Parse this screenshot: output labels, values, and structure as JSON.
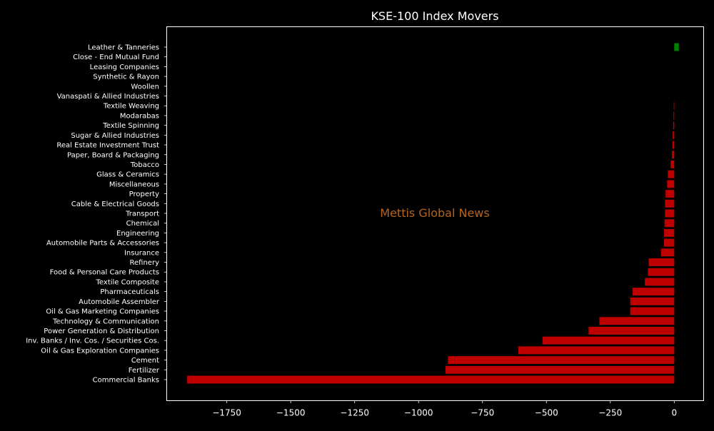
{
  "chart_data": {
    "type": "bar",
    "orientation": "horizontal",
    "title": "KSE-100 Index Movers",
    "xlabel": "",
    "ylabel": "",
    "watermark": "Mettis Global News",
    "xlim": [
      -1985,
      115
    ],
    "xticks": [
      -1750,
      -1500,
      -1250,
      -1000,
      -750,
      -500,
      -250,
      0
    ],
    "xtick_labels": [
      "−1750",
      "−1500",
      "−1250",
      "−1000",
      "−750",
      "−500",
      "−250",
      "0"
    ],
    "categories": [
      "Commercial Banks",
      "Fertilizer",
      "Cement",
      "Oil & Gas Exploration Companies",
      "Inv. Banks / Inv. Cos. / Securities Cos.",
      "Power Generation & Distribution",
      "Technology & Communication",
      "Oil & Gas Marketing Companies",
      "Automobile Assembler",
      "Pharmaceuticals",
      "Textile Composite",
      "Food & Personal Care Products",
      "Refinery",
      "Insurance",
      "Automobile Parts & Accessories",
      "Engineering",
      "Chemical",
      "Transport",
      "Cable & Electrical Goods",
      "Property",
      "Miscellaneous",
      "Glass & Ceramics",
      "Tobacco",
      "Paper, Board & Packaging",
      "Real Estate Investment Trust",
      "Sugar & Allied Industries",
      "Textile Spinning",
      "Modarabas",
      "Textile Weaving",
      "Vanaspati & Allied Industries",
      "Woollen",
      "Synthetic & Rayon",
      "Leasing Companies",
      "Close - End Mutual Fund",
      "Leather & Tanneries"
    ],
    "values": [
      -1905,
      -895,
      -885,
      -610,
      -515,
      -335,
      -293,
      -172,
      -172,
      -163,
      -115,
      -103,
      -100,
      -52,
      -40,
      -40,
      -38,
      -36,
      -36,
      -34,
      -28,
      -25,
      -14,
      -9,
      -7,
      -6,
      -4,
      -3,
      -2,
      0,
      0,
      0,
      0,
      0,
      18
    ],
    "colors": {
      "negative": "#bf0000",
      "positive": "#008000",
      "watermark": "#b5651d",
      "background": "#000000",
      "foreground": "#ffffff"
    },
    "grid": false,
    "legend": "none"
  }
}
